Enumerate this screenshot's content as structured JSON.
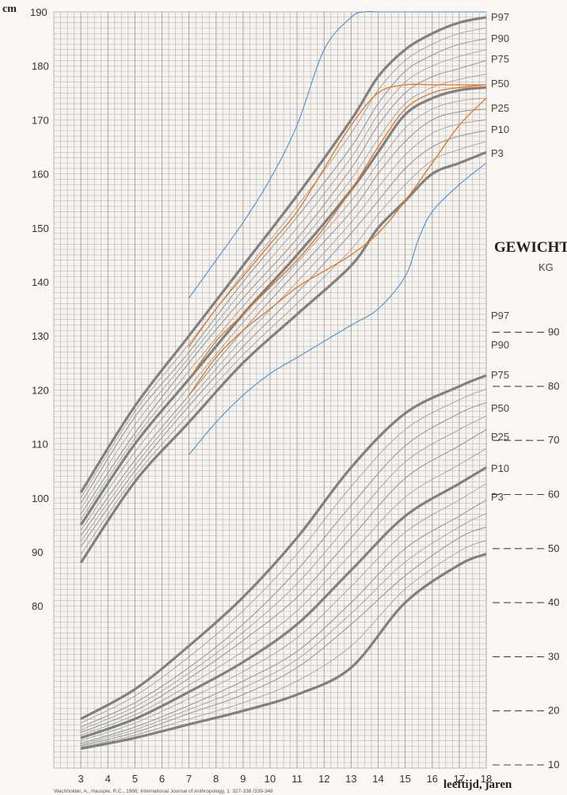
{
  "chart_data": {
    "type": "line",
    "height_axis": {
      "unit_label": "cm",
      "ylim": [
        70,
        190
      ],
      "tick_labels": [
        "190",
        "180",
        "170",
        "160",
        "150",
        "140",
        "130",
        "120",
        "110",
        "100",
        "90",
        "80"
      ],
      "tick_values": [
        190,
        180,
        170,
        160,
        150,
        140,
        130,
        120,
        110,
        100,
        90,
        80
      ]
    },
    "x_axis": {
      "label": "leeftijd, jaren",
      "xlim": [
        2,
        18
      ],
      "tick_labels": [
        "3",
        "4",
        "5",
        "6",
        "7",
        "8",
        "9",
        "10",
        "11",
        "12",
        "13",
        "14",
        "15",
        "16",
        "17",
        "18"
      ],
      "tick_values": [
        3,
        4,
        5,
        6,
        7,
        8,
        9,
        10,
        11,
        12,
        13,
        14,
        15,
        16,
        17,
        18
      ]
    },
    "weight_axis": {
      "title": "GEWICHT",
      "unit_label": "KG",
      "tick_labels": [
        "90",
        "80",
        "70",
        "60",
        "50",
        "40",
        "30",
        "20",
        "10"
      ],
      "tick_values": [
        90,
        80,
        70,
        60,
        50,
        40,
        30,
        20,
        10
      ]
    },
    "height_series": [
      {
        "name": "P97",
        "x": [
          3,
          5,
          7,
          9,
          11,
          13,
          14,
          15,
          16,
          17,
          18
        ],
        "y": [
          101,
          117,
          130,
          143,
          156,
          170,
          178,
          183,
          186,
          188,
          189
        ]
      },
      {
        "name": "P90",
        "x": [
          3,
          5,
          7,
          9,
          11,
          13,
          14,
          15,
          16,
          17,
          18
        ],
        "y": [
          99,
          115,
          127,
          140,
          152,
          165,
          173,
          179,
          182,
          184,
          185
        ]
      },
      {
        "name": "P75",
        "x": [
          3,
          5,
          7,
          9,
          11,
          13,
          14,
          15,
          16,
          17,
          18
        ],
        "y": [
          97,
          112,
          125,
          137,
          148,
          161,
          169,
          175,
          178,
          179.5,
          181
        ]
      },
      {
        "name": "P50",
        "x": [
          3,
          5,
          7,
          9,
          11,
          13,
          14,
          15,
          16,
          17,
          18
        ],
        "y": [
          95,
          110,
          122,
          134,
          145,
          157,
          164,
          171,
          174,
          175.5,
          176
        ]
      },
      {
        "name": "P25",
        "x": [
          3,
          5,
          7,
          9,
          11,
          13,
          14,
          15,
          16,
          17,
          18
        ],
        "y": [
          93,
          107,
          119,
          131,
          142,
          153,
          160,
          166,
          170,
          171.5,
          172
        ]
      },
      {
        "name": "P10",
        "x": [
          3,
          5,
          7,
          9,
          11,
          13,
          14,
          15,
          16,
          17,
          18
        ],
        "y": [
          91,
          105,
          117,
          128,
          138,
          149,
          155,
          161,
          165,
          167,
          168
        ]
      },
      {
        "name": "P3",
        "x": [
          3,
          5,
          7,
          9,
          11,
          13,
          14,
          15,
          16,
          17,
          18
        ],
        "y": [
          88,
          103,
          114,
          125,
          134,
          143,
          150,
          155,
          160,
          162,
          164
        ]
      }
    ],
    "weight_series": [
      {
        "name": "P97",
        "x": [
          3,
          5,
          7,
          9,
          11,
          13,
          15,
          17,
          18
        ],
        "y": [
          18.5,
          24,
          32,
          41,
          52,
          65,
          75,
          80,
          82
        ]
      },
      {
        "name": "P90",
        "x": [
          3,
          5,
          7,
          9,
          11,
          13,
          15,
          17,
          18
        ],
        "y": [
          17,
          21.5,
          28,
          36,
          46,
          58,
          69,
          75,
          77
        ]
      },
      {
        "name": "P75",
        "x": [
          3,
          5,
          7,
          9,
          11,
          13,
          15,
          17,
          18
        ],
        "y": [
          16,
          20,
          26,
          33,
          41,
          52,
          63,
          69,
          72
        ]
      },
      {
        "name": "P50",
        "x": [
          3,
          5,
          7,
          9,
          11,
          13,
          15,
          17,
          18
        ],
        "y": [
          15,
          18.5,
          23.5,
          29,
          36,
          46,
          56,
          62,
          65
        ]
      },
      {
        "name": "P25",
        "x": [
          3,
          5,
          7,
          9,
          11,
          13,
          15,
          17,
          18
        ],
        "y": [
          14,
          17,
          21,
          25.5,
          31,
          40,
          50,
          56,
          59
        ]
      },
      {
        "name": "P10",
        "x": [
          3,
          5,
          7,
          9,
          11,
          13,
          15,
          17,
          18
        ],
        "y": [
          13.5,
          16,
          19.5,
          23,
          28,
          36,
          45,
          52,
          54
        ]
      },
      {
        "name": "P3",
        "x": [
          3,
          5,
          7,
          9,
          11,
          13,
          15,
          17,
          18
        ],
        "y": [
          13,
          15,
          17.5,
          20,
          23,
          28,
          40,
          47,
          49
        ]
      }
    ],
    "percentile_labels": [
      "P97",
      "P90",
      "P75",
      "P50",
      "P25",
      "P10",
      "P3"
    ],
    "orange_curves": [
      {
        "x": [
          7,
          8,
          9,
          10,
          11,
          12,
          13,
          14,
          15,
          16,
          17,
          18
        ],
        "y": [
          128,
          135,
          141,
          147,
          153,
          161,
          169,
          175,
          176.5,
          176.5,
          176.5,
          176.5
        ]
      },
      {
        "x": [
          7,
          8,
          9,
          10,
          11,
          12,
          13,
          14,
          15,
          16,
          17,
          18
        ],
        "y": [
          122,
          129,
          134,
          139,
          144,
          150,
          157,
          165,
          172,
          175,
          176,
          176.5
        ]
      },
      {
        "x": [
          7,
          8,
          9,
          10,
          11,
          12,
          13,
          14,
          15,
          16,
          17,
          18
        ],
        "y": [
          119,
          126,
          131,
          135,
          139,
          142,
          145,
          149,
          155,
          162,
          169,
          174
        ]
      }
    ],
    "blue_curves": [
      {
        "x": [
          7,
          8,
          9,
          10,
          11,
          12,
          13,
          13.5,
          14,
          15,
          16,
          17,
          18
        ],
        "y": [
          137,
          144,
          151,
          159,
          169,
          183,
          189,
          190,
          190,
          190,
          190,
          190,
          190
        ]
      },
      {
        "x": [
          7,
          8,
          9,
          10,
          11,
          12,
          13,
          14,
          15,
          15.5,
          16,
          17,
          18
        ],
        "y": [
          108,
          114,
          119,
          123,
          126,
          129,
          132,
          135,
          141,
          148,
          153,
          158,
          162
        ]
      }
    ],
    "colors": {
      "major": "#8a8a8a",
      "minor": "#9a9a9a",
      "grid": "#b9b9b9",
      "orange": "#e2741f",
      "blue": "#4f8fd0"
    }
  },
  "footer": {
    "citation": "Wachholder, A., Hauspie, R.C., 1986, International Journal of Anthropology, 1: 327-338 /339-348"
  }
}
